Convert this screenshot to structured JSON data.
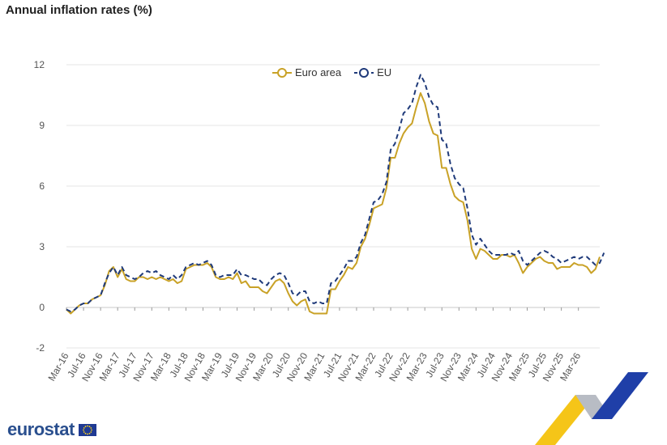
{
  "title": "Annual inflation rates (%)",
  "logo": {
    "text": "eurostat"
  },
  "colors": {
    "euro_area": "#c9a227",
    "eu": "#1f3a7a",
    "grid": "#e6e6e6"
  },
  "chart_data": {
    "type": "line",
    "title": "Annual inflation rates (%)",
    "xlabel": "",
    "ylabel": "",
    "ylim": [
      -2,
      12
    ],
    "yticks": [
      -2,
      0,
      3,
      6,
      9,
      12
    ],
    "grid": true,
    "legend_position": "top-center",
    "x_ticks": [
      "Mar-16",
      "Jul-16",
      "Nov-16",
      "Mar-17",
      "Jul-17",
      "Nov-17",
      "Mar-18",
      "Jul-18",
      "Nov-18",
      "Mar-19",
      "Jul-19",
      "Nov-19",
      "Mar-20",
      "Jul-20",
      "Nov-20",
      "Mar-21",
      "Jul-21",
      "Nov-21",
      "Mar-22",
      "Jul-22",
      "Nov-22",
      "Mar-23",
      "Jul-23",
      "Nov-23",
      "Mar-24",
      "Jul-24",
      "Nov-24",
      "Mar-25",
      "Jul-25",
      "Nov-25",
      "Mar-26"
    ],
    "x_start": "Mar-16",
    "series": [
      {
        "name": "Euro area",
        "values": [
          -0.1,
          -0.3,
          -0.1,
          0.1,
          0.2,
          0.2,
          0.4,
          0.5,
          0.6,
          1.1,
          1.8,
          2.0,
          1.5,
          1.9,
          1.4,
          1.3,
          1.3,
          1.5,
          1.5,
          1.4,
          1.5,
          1.4,
          1.5,
          1.4,
          1.3,
          1.4,
          1.2,
          1.3,
          1.9,
          2.0,
          2.1,
          2.1,
          2.1,
          2.2,
          2.0,
          1.5,
          1.4,
          1.4,
          1.5,
          1.4,
          1.7,
          1.2,
          1.3,
          1.0,
          1.0,
          1.0,
          0.8,
          0.7,
          1.0,
          1.3,
          1.4,
          1.2,
          0.7,
          0.3,
          0.1,
          0.3,
          0.4,
          -0.2,
          -0.3,
          -0.3,
          -0.3,
          -0.3,
          0.9,
          0.9,
          1.3,
          1.6,
          2.0,
          1.9,
          2.2,
          3.0,
          3.4,
          4.1,
          4.9,
          5.0,
          5.1,
          5.9,
          7.4,
          7.4,
          8.1,
          8.6,
          8.9,
          9.1,
          9.9,
          10.6,
          10.1,
          9.2,
          8.6,
          8.5,
          6.9,
          6.9,
          6.1,
          5.5,
          5.3,
          5.2,
          4.3,
          2.9,
          2.4,
          2.9,
          2.8,
          2.6,
          2.4,
          2.4,
          2.6,
          2.6,
          2.5,
          2.6,
          2.2,
          1.7,
          2.0,
          2.2,
          2.4,
          2.5,
          2.3,
          2.2,
          2.2,
          1.9,
          2.0,
          2.0,
          2.0,
          2.2,
          2.1,
          2.1,
          2.0,
          1.7,
          1.9,
          2.5
        ]
      },
      {
        "name": "EU",
        "values": [
          -0.1,
          -0.2,
          -0.1,
          0.1,
          0.2,
          0.2,
          0.4,
          0.5,
          0.6,
          1.2,
          1.7,
          2.0,
          1.6,
          2.0,
          1.6,
          1.5,
          1.4,
          1.5,
          1.7,
          1.8,
          1.7,
          1.8,
          1.6,
          1.5,
          1.4,
          1.6,
          1.4,
          1.6,
          2.0,
          2.1,
          2.2,
          2.1,
          2.2,
          2.3,
          2.1,
          1.6,
          1.5,
          1.6,
          1.6,
          1.6,
          1.9,
          1.6,
          1.6,
          1.5,
          1.4,
          1.4,
          1.2,
          1.1,
          1.4,
          1.6,
          1.7,
          1.6,
          1.2,
          0.7,
          0.6,
          0.8,
          0.8,
          0.3,
          0.2,
          0.3,
          0.2,
          0.2,
          1.2,
          1.3,
          1.6,
          1.9,
          2.3,
          2.3,
          2.5,
          3.2,
          3.6,
          4.4,
          5.2,
          5.3,
          5.6,
          6.2,
          7.8,
          8.1,
          8.8,
          9.6,
          9.8,
          10.1,
          10.9,
          11.5,
          11.1,
          10.4,
          10.0,
          9.9,
          8.3,
          8.1,
          7.1,
          6.4,
          6.1,
          5.9,
          4.9,
          3.6,
          3.1,
          3.4,
          3.1,
          2.8,
          2.6,
          2.6,
          2.6,
          2.6,
          2.7,
          2.6,
          2.8,
          2.3,
          2.1,
          2.3,
          2.5,
          2.7,
          2.8,
          2.7,
          2.5,
          2.4,
          2.2,
          2.3,
          2.4,
          2.5,
          2.4,
          2.5,
          2.5,
          2.3,
          2.1,
          2.2,
          2.7
        ]
      }
    ]
  }
}
